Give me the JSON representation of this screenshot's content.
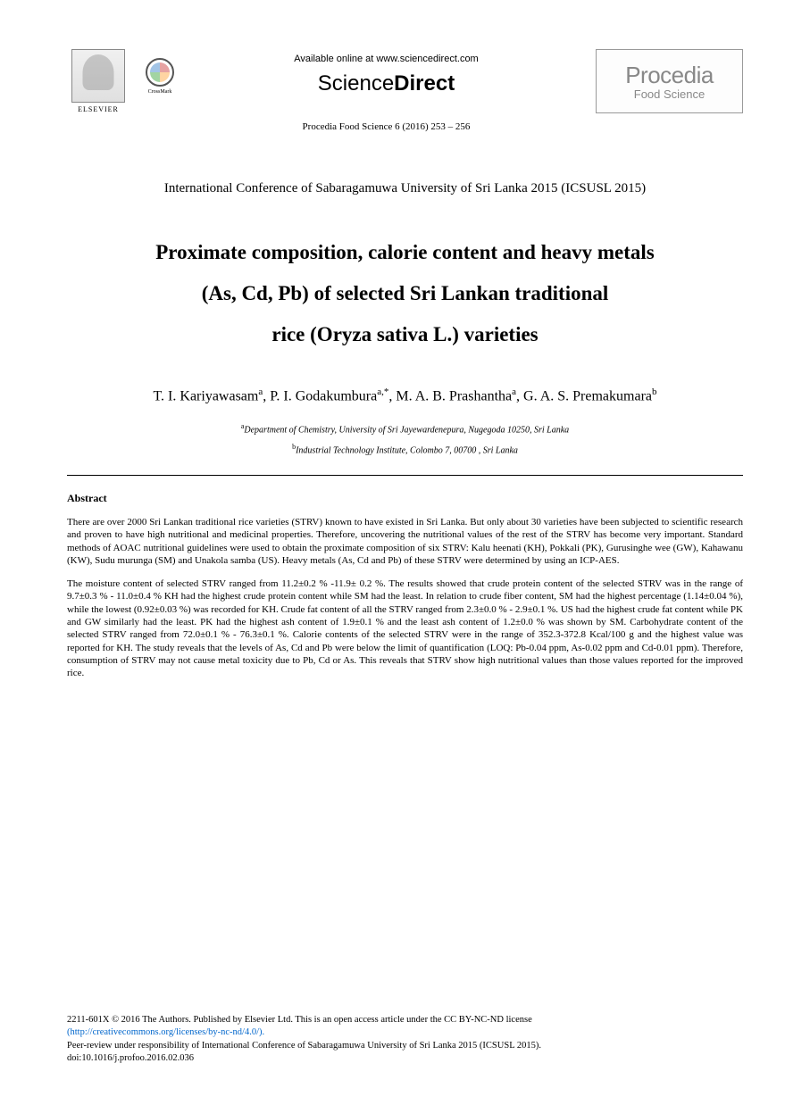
{
  "header": {
    "elsevier_label": "ELSEVIER",
    "crossmark_label": "CrossMark",
    "available_online": "Available online at www.sciencedirect.com",
    "sciencedirect_prefix": "Science",
    "sciencedirect_suffix": "Direct",
    "journal_info": "Procedia Food Science 6 (2016) 253 – 256",
    "procedia_label": "Procedia",
    "food_science_label": "Food Science"
  },
  "conference": "International Conference of Sabaragamuwa University of Sri Lanka 2015 (ICSUSL 2015)",
  "title": {
    "line1": "Proximate composition, calorie content and heavy metals",
    "line2": "(As, Cd, Pb) of selected Sri Lankan traditional",
    "line3": "rice (Oryza sativa L.) varieties"
  },
  "authors": {
    "a1_name": "T. I. Kariyawasam",
    "a1_sup": "a",
    "a2_name": "P. I. Godakumbura",
    "a2_sup": "a,*",
    "a3_name": "M. A. B. Prashantha",
    "a3_sup": "a",
    "a4_name": "G. A. S. Premakumara",
    "a4_sup": "b"
  },
  "affiliations": {
    "a_sup": "a",
    "a_text": "Department of Chemistry, University of Sri Jayewardenepura, Nugegoda 10250, Sri Lanka",
    "b_sup": "b",
    "b_text": "Industrial Technology Institute, Colombo 7,  00700 , Sri Lanka"
  },
  "abstract": {
    "heading": "Abstract",
    "para1": "There are over 2000 Sri Lankan traditional rice varieties (STRV) known to have existed in Sri Lanka. But only about 30 varieties have been subjected to scientific research and proven to have high nutritional and medicinal properties. Therefore, uncovering the nutritional values of the rest of the STRV has become very important. Standard methods of AOAC nutritional guidelines were used to obtain the proximate composition of six STRV: Kalu heenati (KH), Pokkali (PK), Gurusinghe wee (GW), Kahawanu (KW), Sudu murunga (SM) and Unakola samba (US). Heavy metals (As, Cd and Pb) of these STRV were determined by using an ICP-AES.",
    "para2": "The moisture content of selected STRV ranged from 11.2±0.2 % -11.9± 0.2 %. The results showed that crude protein content of the selected STRV was in the range of 9.7±0.3 % - 11.0±0.4 % KH had the highest crude protein content while SM had the least. In relation to crude fiber content, SM had the highest percentage (1.14±0.04 %), while the lowest (0.92±0.03 %) was recorded for KH. Crude fat content of all the STRV ranged from 2.3±0.0 % - 2.9±0.1 %. US had the highest crude fat content while PK and GW similarly had the least. PK had the highest ash content of 1.9±0.1 % and the least ash content of 1.2±0.0 % was shown by SM. Carbohydrate content of the selected STRV ranged from 72.0±0.1 % - 76.3±0.1 %. Calorie contents of the selected STRV were in the range of 352.3-372.8 Kcal/100 g and the highest value was reported for KH. The study reveals that the levels of As, Cd and Pb were below the limit of quantification (LOQ: Pb-0.04 ppm, As-0.02 ppm and Cd-0.01 ppm). Therefore, consumption of STRV may not cause metal toxicity due to Pb, Cd or As. This reveals that STRV show high nutritional values than those values reported for the improved rice."
  },
  "footer": {
    "copyright": "2211-601X © 2016 The Authors. Published by Elsevier Ltd. This is an open access article under the CC BY-NC-ND license",
    "license_link": "(http://creativecommons.org/licenses/by-nc-nd/4.0/).",
    "peer_review": "Peer-review under responsibility of International Conference of Sabaragamuwa University of Sri Lanka 2015 (ICSUSL 2015).",
    "doi": "doi:10.1016/j.profoo.2016.02.036"
  },
  "colors": {
    "text": "#000000",
    "link": "#0066cc",
    "logo_gray": "#888888",
    "background": "#ffffff"
  },
  "typography": {
    "body_font": "Times New Roman",
    "title_fontsize": 23,
    "authors_fontsize": 16,
    "abstract_fontsize": 11,
    "footer_fontsize": 10.5,
    "conference_fontsize": 15
  }
}
